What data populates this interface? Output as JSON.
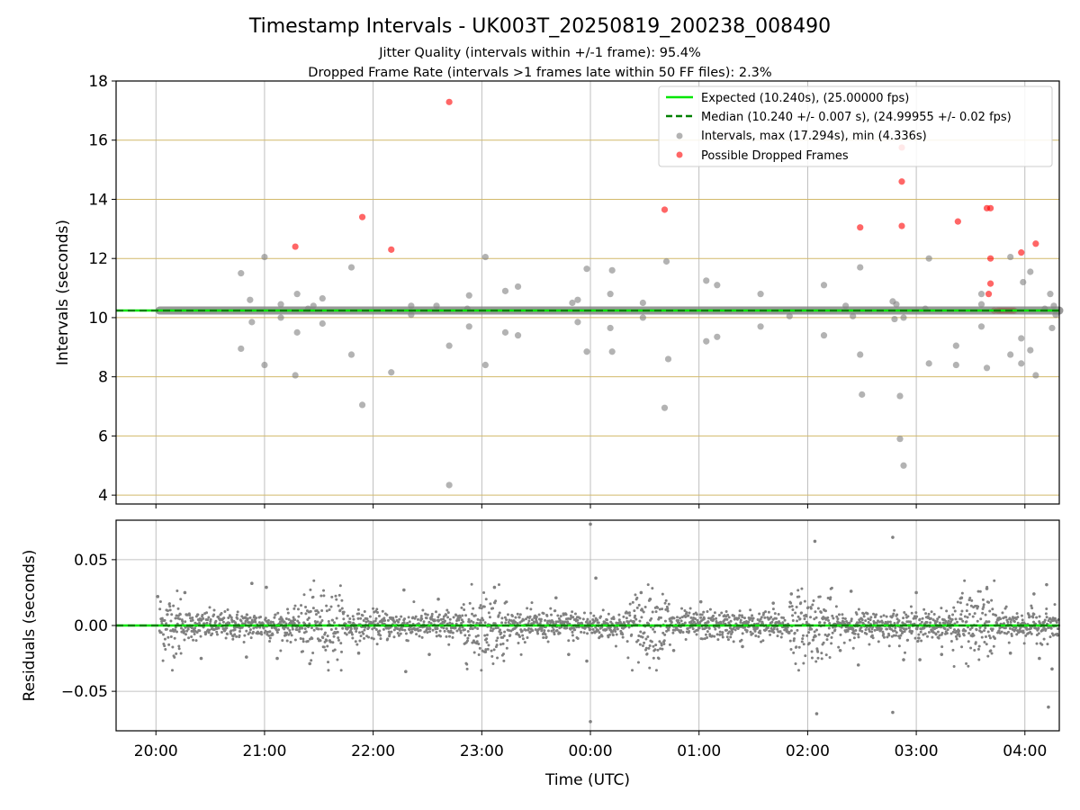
{
  "title": "Timestamp Intervals - UK003T_20250819_200238_008490",
  "subtitle_1": "Jitter Quality (intervals within +/-1 frame): 95.4%",
  "subtitle_2": "Dropped Frame Rate (intervals >1 frames late within 50 FF files): 2.3%",
  "colors": {
    "expected": "#00e600",
    "median": "#008000",
    "intervals": "#808080",
    "dropped": "#ff0000",
    "hgrid_top": "#d2b96a",
    "grid": "#b0b0b0"
  },
  "chart_data": [
    {
      "type": "scatter",
      "ylabel": "Intervals (seconds)",
      "xlim": [
        "19:38",
        "04:19"
      ],
      "ylim": [
        3.7,
        18
      ],
      "yticks": [
        "4",
        "6",
        "8",
        "10",
        "12",
        "14",
        "16",
        "18"
      ],
      "hgrid_values": [
        4,
        6,
        8,
        10,
        12,
        14,
        16,
        18
      ],
      "xticks": [
        "20:00",
        "21:00",
        "22:00",
        "23:00",
        "00:00",
        "01:00",
        "02:00",
        "03:00",
        "04:00"
      ],
      "grid": true,
      "legend_position": "top-right",
      "expected_value": 10.24,
      "median_value": 10.24,
      "legend": [
        {
          "label": "Expected (10.240s), (25.00000 fps)",
          "style": "line"
        },
        {
          "label": "Median (10.240 +/- 0.007 s), (24.99955 +/- 0.02 fps)",
          "style": "dashed"
        },
        {
          "label": "Intervals, max (17.294s), min (4.336s)",
          "style": "grey-dot"
        },
        {
          "label": "Possible Dropped Frames",
          "style": "red-dot"
        }
      ],
      "series": [
        {
          "name": "Intervals, max (17.294s), min (4.336s)",
          "points": [
            [
              "20:47",
              11.5
            ],
            [
              "20:47",
              8.95
            ],
            [
              "20:52",
              10.6
            ],
            [
              "20:53",
              9.85
            ],
            [
              "21:00",
              12.05
            ],
            [
              "21:00",
              8.4
            ],
            [
              "21:09",
              10.45
            ],
            [
              "21:09",
              10.0
            ],
            [
              "21:17",
              8.05
            ],
            [
              "21:18",
              10.8
            ],
            [
              "21:18",
              9.5
            ],
            [
              "21:24",
              10.3
            ],
            [
              "21:27",
              10.4
            ],
            [
              "21:32",
              9.8
            ],
            [
              "21:32",
              10.65
            ],
            [
              "21:48",
              11.7
            ],
            [
              "21:48",
              8.75
            ],
            [
              "21:54",
              7.05
            ],
            [
              "22:10",
              8.15
            ],
            [
              "22:21",
              10.4
            ],
            [
              "22:21",
              10.1
            ],
            [
              "22:35",
              10.4
            ],
            [
              "22:42",
              9.05
            ],
            [
              "22:42",
              4.34
            ],
            [
              "22:52",
              10.3
            ],
            [
              "22:53",
              10.75
            ],
            [
              "22:53",
              9.7
            ],
            [
              "23:02",
              12.05
            ],
            [
              "23:02",
              8.4
            ],
            [
              "23:13",
              10.9
            ],
            [
              "23:13",
              9.5
            ],
            [
              "23:20",
              11.05
            ],
            [
              "23:20",
              9.4
            ],
            [
              "23:50",
              10.5
            ],
            [
              "23:53",
              10.6
            ],
            [
              "23:53",
              9.85
            ],
            [
              "23:58",
              11.65
            ],
            [
              "23:58",
              8.85
            ],
            [
              "00:11",
              10.8
            ],
            [
              "00:11",
              9.65
            ],
            [
              "00:12",
              11.6
            ],
            [
              "00:12",
              8.85
            ],
            [
              "00:29",
              10.5
            ],
            [
              "00:29",
              10.0
            ],
            [
              "00:41",
              6.95
            ],
            [
              "00:42",
              11.9
            ],
            [
              "00:43",
              8.6
            ],
            [
              "01:04",
              11.25
            ],
            [
              "01:04",
              9.2
            ],
            [
              "01:10",
              11.1
            ],
            [
              "01:10",
              9.35
            ],
            [
              "01:34",
              10.8
            ],
            [
              "01:34",
              9.7
            ],
            [
              "01:50",
              10.05
            ],
            [
              "02:09",
              11.1
            ],
            [
              "02:09",
              9.4
            ],
            [
              "02:21",
              10.4
            ],
            [
              "02:25",
              10.05
            ],
            [
              "02:29",
              11.7
            ],
            [
              "02:29",
              8.75
            ],
            [
              "02:30",
              7.4
            ],
            [
              "02:47",
              10.55
            ],
            [
              "02:48",
              9.95
            ],
            [
              "02:49",
              10.45
            ],
            [
              "02:51",
              7.35
            ],
            [
              "02:51",
              5.9
            ],
            [
              "02:53",
              5.0
            ],
            [
              "02:53",
              10.0
            ],
            [
              "03:07",
              12.0
            ],
            [
              "03:07",
              8.45
            ],
            [
              "03:22",
              9.05
            ],
            [
              "03:22",
              8.4
            ],
            [
              "03:36",
              10.8
            ],
            [
              "03:36",
              10.45
            ],
            [
              "03:36",
              9.7
            ],
            [
              "03:39",
              8.3
            ],
            [
              "03:52",
              12.05
            ],
            [
              "03:52",
              8.75
            ],
            [
              "03:58",
              9.3
            ],
            [
              "03:58",
              8.45
            ],
            [
              "03:59",
              11.2
            ],
            [
              "04:03",
              11.55
            ],
            [
              "04:03",
              8.9
            ],
            [
              "04:06",
              8.05
            ],
            [
              "04:14",
              10.8
            ],
            [
              "04:15",
              9.65
            ],
            [
              "04:16",
              10.4
            ],
            [
              "04:17",
              10.1
            ],
            [
              "04:11",
              10.3
            ],
            [
              "03:05",
              10.3
            ]
          ]
        },
        {
          "name": "Possible Dropped Frames",
          "points": [
            [
              "21:17",
              12.4
            ],
            [
              "21:54",
              13.4
            ],
            [
              "22:10",
              12.3
            ],
            [
              "22:42",
              17.29
            ],
            [
              "00:41",
              13.65
            ],
            [
              "02:29",
              13.05
            ],
            [
              "02:52",
              15.75
            ],
            [
              "02:52",
              14.6
            ],
            [
              "02:52",
              13.1
            ],
            [
              "03:23",
              13.25
            ],
            [
              "03:39",
              13.7
            ],
            [
              "03:41",
              13.7
            ],
            [
              "03:41",
              12.0
            ],
            [
              "03:41",
              11.15
            ],
            [
              "03:40",
              10.8
            ],
            [
              "03:58",
              12.2
            ],
            [
              "04:06",
              12.5
            ],
            [
              "03:43",
              10.24
            ],
            [
              "03:45",
              10.24
            ],
            [
              "03:46",
              10.24
            ],
            [
              "03:47",
              10.24
            ],
            [
              "03:48",
              10.24
            ],
            [
              "03:49",
              10.24
            ],
            [
              "03:50",
              10.24
            ],
            [
              "03:51",
              10.24
            ],
            [
              "03:52",
              10.24
            ],
            [
              "03:53",
              10.24
            ],
            [
              "03:54",
              10.24
            ]
          ]
        }
      ]
    },
    {
      "type": "scatter",
      "ylabel": "Residuals (seconds)",
      "xlabel": "Time (UTC)",
      "xlim": [
        "19:38",
        "04:19"
      ],
      "ylim": [
        -0.08,
        0.08
      ],
      "yticks": [
        "0.05",
        "0.00",
        "−0.05"
      ],
      "ytick_values": [
        0.05,
        0.0,
        -0.05
      ],
      "xticks": [
        "20:00",
        "21:00",
        "22:00",
        "23:00",
        "00:00",
        "01:00",
        "02:00",
        "03:00",
        "04:00"
      ],
      "grid": true,
      "expected_value": 0.0,
      "median_value": 0.0,
      "series": [
        {
          "name": "Residuals",
          "points": [
            [
              "00:00",
              0.077
            ],
            [
              "00:00",
              -0.073
            ],
            [
              "02:04",
              0.064
            ],
            [
              "02:05",
              -0.067
            ],
            [
              "02:47",
              0.067
            ],
            [
              "02:47",
              -0.066
            ],
            [
              "04:13",
              -0.062
            ],
            [
              "22:18",
              -0.035
            ],
            [
              "23:07",
              0.029
            ],
            [
              "00:03",
              0.036
            ],
            [
              "02:28",
              -0.03
            ],
            [
              "02:24",
              0.026
            ],
            [
              "03:39",
              0.028
            ],
            [
              "04:15",
              -0.033
            ],
            [
              "04:12",
              0.031
            ],
            [
              "21:25",
              -0.029
            ],
            [
              "20:53",
              0.032
            ],
            [
              "22:17",
              0.027
            ],
            [
              "01:51",
              0.024
            ],
            [
              "00:28",
              0.025
            ],
            [
              "02:53",
              -0.026
            ],
            [
              "03:00",
              0.025
            ],
            [
              "03:02",
              -0.026
            ],
            [
              "04:05",
              0.024
            ],
            [
              "23:58",
              -0.027
            ],
            [
              "20:01",
              0.022
            ],
            [
              "20:16",
              0.025
            ],
            [
              "21:01",
              0.029
            ],
            [
              "22:36",
              0.02
            ],
            [
              "23:41",
              0.021
            ],
            [
              "00:33",
              0.02
            ],
            [
              "01:01",
              0.018
            ],
            [
              "01:41",
              0.017
            ],
            [
              "03:25",
              0.021
            ],
            [
              "20:25",
              -0.025
            ],
            [
              "20:50",
              -0.024
            ],
            [
              "21:07",
              -0.025
            ],
            [
              "21:52",
              -0.021
            ],
            [
              "22:31",
              -0.022
            ],
            [
              "23:02",
              -0.02
            ],
            [
              "23:48",
              -0.022
            ],
            [
              "00:46",
              -0.019
            ],
            [
              "01:24",
              -0.016
            ],
            [
              "02:18",
              -0.019
            ],
            [
              "03:14",
              -0.022
            ],
            [
              "03:52",
              -0.021
            ],
            [
              "04:08",
              -0.025
            ]
          ]
        }
      ]
    }
  ]
}
